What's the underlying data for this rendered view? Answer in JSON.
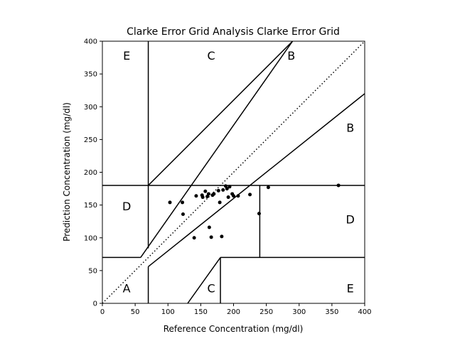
{
  "chart_data": {
    "type": "scatter",
    "title": "Clarke Error Grid Analysis Clarke Error Grid",
    "xlabel": "Reference Concentration (mg/dl)",
    "ylabel": "Prediction Concentration (mg/dl)",
    "xlim": [
      0,
      400
    ],
    "ylim": [
      0,
      400
    ],
    "xticks": [
      "0",
      "50",
      "100",
      "150",
      "200",
      "250",
      "300",
      "350",
      "400"
    ],
    "yticks": [
      "0",
      "50",
      "100",
      "150",
      "200",
      "250",
      "300",
      "350",
      "400"
    ],
    "grid": false,
    "points": [
      {
        "x": 103,
        "y": 154
      },
      {
        "x": 122,
        "y": 154
      },
      {
        "x": 123,
        "y": 136
      },
      {
        "x": 140,
        "y": 100
      },
      {
        "x": 143,
        "y": 164
      },
      {
        "x": 152,
        "y": 165
      },
      {
        "x": 153,
        "y": 162
      },
      {
        "x": 157,
        "y": 171
      },
      {
        "x": 160,
        "y": 163
      },
      {
        "x": 162,
        "y": 167
      },
      {
        "x": 163,
        "y": 116
      },
      {
        "x": 166,
        "y": 101
      },
      {
        "x": 168,
        "y": 165
      },
      {
        "x": 170,
        "y": 167
      },
      {
        "x": 177,
        "y": 172
      },
      {
        "x": 179,
        "y": 154
      },
      {
        "x": 182,
        "y": 102
      },
      {
        "x": 184,
        "y": 173
      },
      {
        "x": 188,
        "y": 179
      },
      {
        "x": 190,
        "y": 175
      },
      {
        "x": 192,
        "y": 162
      },
      {
        "x": 194,
        "y": 178
      },
      {
        "x": 198,
        "y": 167
      },
      {
        "x": 200,
        "y": 164
      },
      {
        "x": 207,
        "y": 164
      },
      {
        "x": 225,
        "y": 166
      },
      {
        "x": 239,
        "y": 137
      },
      {
        "x": 253,
        "y": 177
      },
      {
        "x": 360,
        "y": 180
      }
    ],
    "zones": [
      {
        "label": "A",
        "x": 37,
        "y": 23
      },
      {
        "label": "B",
        "x": 288,
        "y": 378
      },
      {
        "label": "B",
        "x": 378,
        "y": 268
      },
      {
        "label": "C",
        "x": 166,
        "y": 378
      },
      {
        "label": "C",
        "x": 166,
        "y": 23
      },
      {
        "label": "D",
        "x": 37,
        "y": 148
      },
      {
        "label": "D",
        "x": 378,
        "y": 128
      },
      {
        "label": "E",
        "x": 37,
        "y": 378
      },
      {
        "label": "E",
        "x": 378,
        "y": 23
      }
    ],
    "zone_lines": [
      [
        [
          0,
          70
        ],
        [
          58.333,
          70
        ]
      ],
      [
        [
          70,
          84
        ],
        [
          70,
          400
        ]
      ],
      [
        [
          70,
          0
        ],
        [
          70,
          56
        ]
      ],
      [
        [
          70,
          56
        ],
        [
          400,
          320
        ]
      ],
      [
        [
          58.333,
          70
        ],
        [
          290,
          400
        ]
      ],
      [
        [
          70,
          180
        ],
        [
          400,
          180
        ]
      ],
      [
        [
          0,
          180
        ],
        [
          70,
          180
        ]
      ],
      [
        [
          70,
          180
        ],
        [
          290,
          400
        ]
      ],
      [
        [
          130,
          0
        ],
        [
          180,
          70
        ]
      ],
      [
        [
          180,
          0
        ],
        [
          180,
          70
        ]
      ],
      [
        [
          180,
          70
        ],
        [
          400,
          70
        ]
      ],
      [
        [
          240,
          70
        ],
        [
          240,
          180
        ]
      ]
    ],
    "reference_line": [
      [
        0,
        0
      ],
      [
        400,
        400
      ]
    ],
    "colors": {
      "points": "#000000",
      "lines": "#000000"
    }
  }
}
